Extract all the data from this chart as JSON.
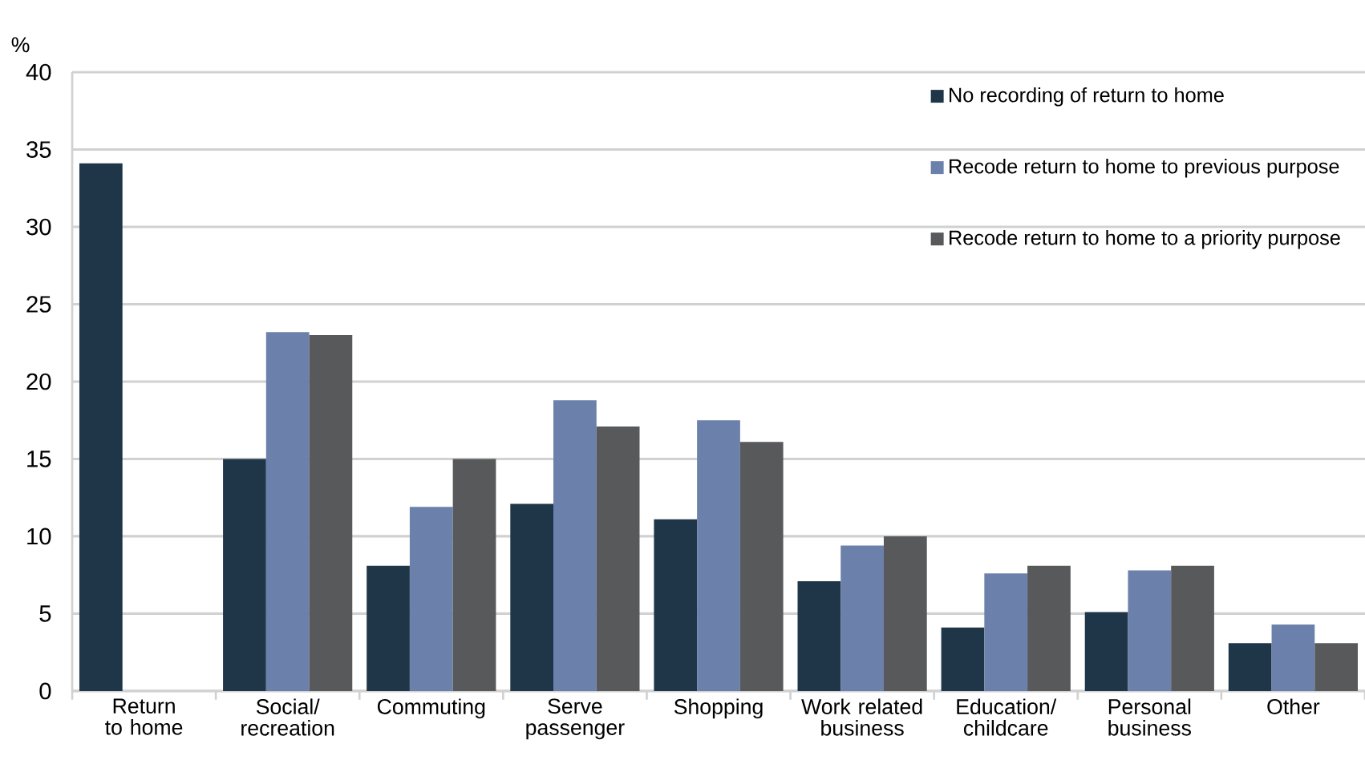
{
  "chart_data": {
    "type": "bar",
    "ylabel": "%",
    "categories": [
      "Return to home",
      "Social/ recreation",
      "Commuting",
      "Serve passenger",
      "Shopping",
      "Work related business",
      "Education/ childcare",
      "Personal business",
      "Other"
    ],
    "series": [
      {
        "name": "No recording of return to home",
        "color": "#1f3649",
        "values": [
          34.1,
          15.0,
          8.1,
          12.1,
          11.1,
          7.1,
          4.1,
          5.1,
          3.1
        ]
      },
      {
        "name": "Recode return to home to previous purpose",
        "color": "#6b80aa",
        "values": [
          0,
          23.2,
          11.9,
          18.8,
          17.5,
          9.4,
          7.6,
          7.8,
          4.3
        ]
      },
      {
        "name": "Recode return to home to a priority purpose",
        "color": "#58595b",
        "values": [
          0,
          23.0,
          15.0,
          17.1,
          16.1,
          10.0,
          8.1,
          8.1,
          3.1
        ]
      }
    ],
    "ylim": [
      0,
      40
    ],
    "yticks": [
      0,
      5,
      10,
      15,
      20,
      25,
      30,
      35,
      40
    ],
    "grid": "y",
    "legend": "top right"
  }
}
